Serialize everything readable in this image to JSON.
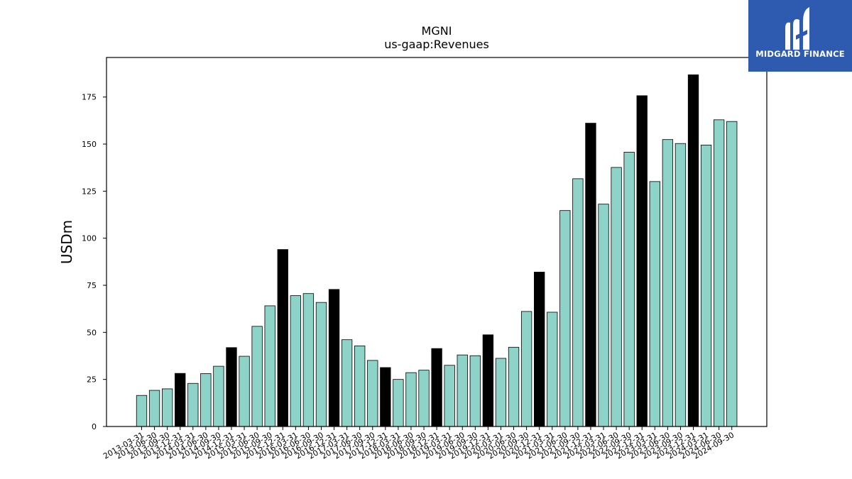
{
  "chart_data": {
    "type": "bar",
    "title": "MGNI",
    "subtitle": "us-gaap:Revenues",
    "xlabel": "",
    "ylabel": "USDm",
    "ylim": [
      0,
      196
    ],
    "yticks": [
      0,
      25,
      50,
      75,
      100,
      125,
      150,
      175
    ],
    "colors": {
      "quarter": "#8dd3c7",
      "fiscal_year_end": "#000000",
      "edge": "#000000"
    },
    "categories": [
      "2013-03-31",
      "2013-06-30",
      "2013-09-30",
      "2013-12-31",
      "2014-03-31",
      "2014-06-30",
      "2014-09-30",
      "2014-12-31",
      "2015-03-31",
      "2015-06-30",
      "2015-09-30",
      "2015-12-31",
      "2016-03-31",
      "2016-06-30",
      "2016-09-30",
      "2016-12-31",
      "2017-03-31",
      "2017-06-30",
      "2017-09-30",
      "2017-12-31",
      "2018-03-31",
      "2018-06-30",
      "2018-09-30",
      "2018-12-31",
      "2019-03-31",
      "2019-06-30",
      "2019-09-30",
      "2019-12-31",
      "2020-03-31",
      "2020-06-30",
      "2020-09-30",
      "2020-12-31",
      "2021-03-31",
      "2021-06-30",
      "2021-09-30",
      "2021-12-31",
      "2022-03-31",
      "2022-06-30",
      "2022-09-30",
      "2022-12-31",
      "2023-03-31",
      "2023-06-30",
      "2023-09-30",
      "2023-12-31",
      "2024-03-31",
      "2024-06-30",
      "2024-09-30"
    ],
    "values": [
      16.5,
      19.2,
      20.0,
      28.2,
      22.9,
      28.1,
      32.0,
      41.9,
      37.3,
      53.2,
      64.1,
      94.0,
      69.5,
      70.6,
      65.9,
      72.8,
      46.1,
      42.8,
      35.1,
      31.3,
      25.0,
      28.6,
      29.9,
      41.4,
      32.5,
      38.0,
      37.6,
      48.7,
      36.2,
      42.1,
      61.1,
      82.0,
      60.7,
      114.7,
      131.6,
      161.1,
      118.1,
      137.6,
      145.7,
      175.7,
      130.1,
      152.4,
      150.3,
      186.8,
      149.5,
      162.9,
      162.0
    ],
    "fiscal_year_end": [
      false,
      false,
      false,
      true,
      false,
      false,
      false,
      true,
      false,
      false,
      false,
      true,
      false,
      false,
      false,
      true,
      false,
      false,
      false,
      true,
      false,
      false,
      false,
      true,
      false,
      false,
      false,
      true,
      false,
      false,
      false,
      true,
      false,
      false,
      false,
      true,
      false,
      false,
      false,
      true,
      false,
      false,
      false,
      true,
      false,
      false,
      false
    ]
  },
  "logo": {
    "text": "MIDGARD FINANCE",
    "background": "#2e5bb0",
    "icon": "midgard-logo-icon"
  }
}
